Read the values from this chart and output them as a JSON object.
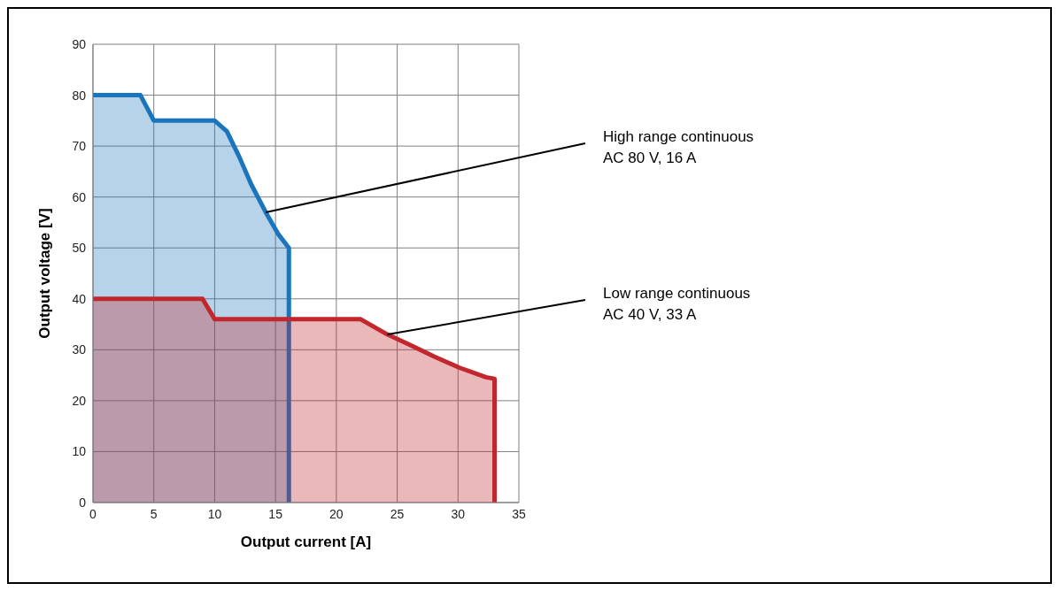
{
  "chart_data": {
    "type": "area",
    "xlabel": "Output current [A]",
    "ylabel": "Output voltage [V]",
    "xlim": [
      0,
      35
    ],
    "xticks": [
      0,
      5,
      10,
      15,
      20,
      25,
      30,
      35
    ],
    "ylim": [
      0,
      90
    ],
    "yticks": [
      0,
      10,
      20,
      30,
      40,
      50,
      60,
      70,
      80,
      90
    ],
    "grid": true,
    "marker": "none",
    "line_style": "solid",
    "series": [
      {
        "color": "#1b75bc",
        "x": [
          0,
          3.9,
          5,
          10,
          11,
          12,
          13,
          14.2,
          15.2,
          16.1,
          16.1
        ],
        "values": [
          80,
          80,
          75,
          75,
          72.9,
          68,
          62.5,
          57,
          52.8,
          50,
          0
        ]
      },
      {
        "color": "#c1272d",
        "x": [
          0,
          9,
          10,
          22,
          24.2,
          26,
          28,
          30.1,
          32.3,
          33,
          33
        ],
        "values": [
          40,
          40,
          36,
          36,
          33,
          31,
          28.7,
          26.5,
          24.6,
          24.3,
          0
        ]
      }
    ],
    "annotations": [
      {
        "text": "High range continuous\nAC 80 V, 16 A",
        "x": 14.2,
        "y": 57
      },
      {
        "text": "Low range continuous\nAC 40 V, 33 A",
        "x": 24.2,
        "y": 33
      }
    ]
  }
}
